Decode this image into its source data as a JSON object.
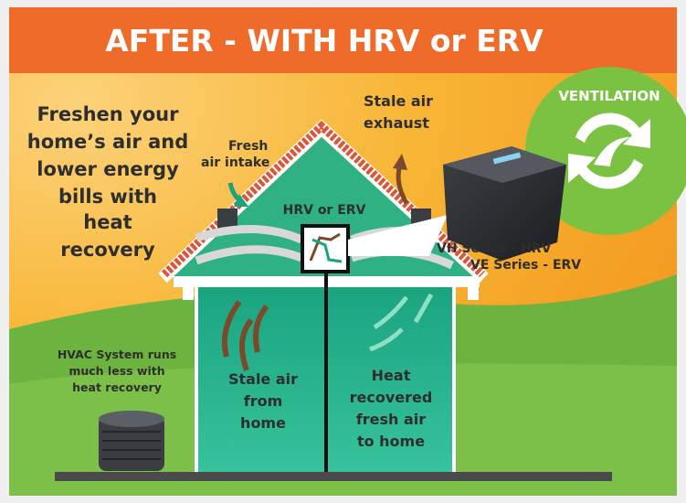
{
  "title": "AFTER -  WITH HRV or ERV",
  "headline": [
    "Freshen your",
    "home’s air and",
    "lower energy",
    "bills with",
    "heat",
    "recovery"
  ],
  "badge": "VENTILATION",
  "fresh_air_intake": [
    "Fresh",
    "air intake"
  ],
  "stale_air_exhaust": [
    "Stale air",
    "exhaust"
  ],
  "unit_label": "HRV or ERV",
  "products": [
    "VH Series - HRV",
    "VE Series - ERV"
  ],
  "hvac_note": [
    "HVAC System runs",
    "much less with",
    "heat recovery"
  ],
  "stale_from_home": [
    "Stale air",
    "from",
    "home"
  ],
  "heat_recovered": [
    "Heat",
    "recovered",
    "fresh air",
    "to home"
  ]
}
